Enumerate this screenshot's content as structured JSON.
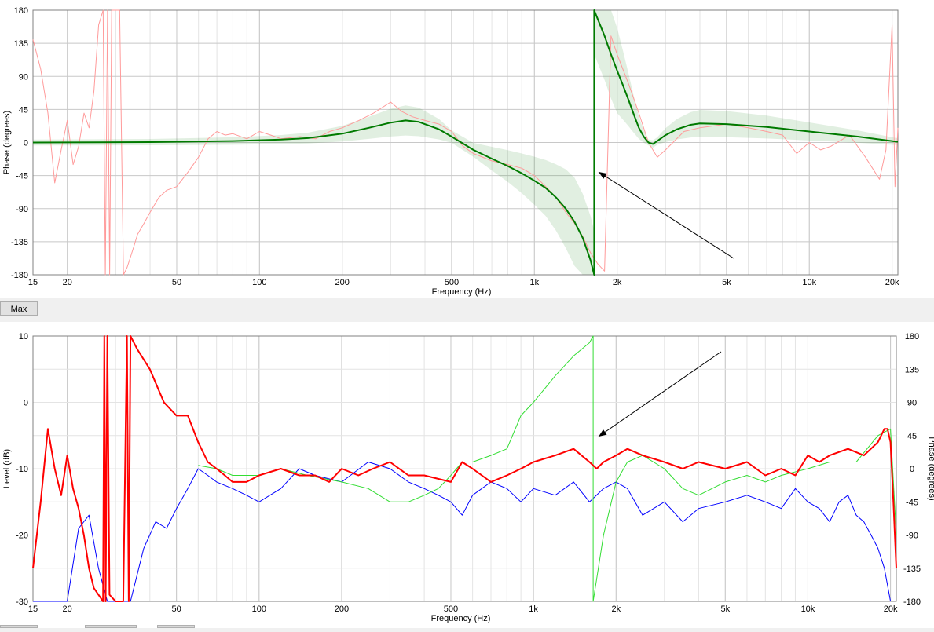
{
  "controls": {
    "max_label": "Max"
  },
  "colors": {
    "red_trace": "#ff0000",
    "light_red_trace": "#ff9a9a",
    "green_trace": "#007a00",
    "green_band": "#2e8b2e",
    "light_green_trace": "#33dd33",
    "blue_trace": "#0000ff",
    "grid_major": "#c8c8c8",
    "grid_minor": "#e4e4e4",
    "arrow": "#000000"
  },
  "chart_data": [
    {
      "type": "line",
      "name": "phase-chart",
      "xlabel": "Frequency (Hz)",
      "ylabel": "Phase (degrees)",
      "xscale": "log",
      "xlim": [
        15,
        21000
      ],
      "ylim": [
        -180,
        180
      ],
      "xticks": [
        "15",
        "20",
        "50",
        "100",
        "200",
        "500",
        "1k",
        "2k",
        "5k",
        "10k",
        "20k"
      ],
      "xtick_values": [
        15,
        20,
        50,
        100,
        200,
        500,
        1000,
        2000,
        5000,
        10000,
        20000
      ],
      "yticks": [
        "180",
        "135",
        "90",
        "45",
        "0",
        "-45",
        "-90",
        "-135",
        "-180"
      ],
      "ytick_values": [
        180,
        135,
        90,
        45,
        0,
        -45,
        -90,
        -135,
        -180
      ],
      "series": [
        {
          "color": "#007a00",
          "width": 2,
          "x": [
            15,
            40,
            80,
            120,
            150,
            200,
            250,
            300,
            340,
            380,
            450,
            500,
            600,
            700,
            800,
            900,
            1000,
            1100,
            1200,
            1300,
            1400,
            1500,
            1600,
            1650,
            1650,
            1700,
            1800,
            1900,
            2000,
            2100,
            2200,
            2300,
            2400,
            2500,
            2600,
            2700,
            2800,
            3000,
            3300,
            3700,
            4000,
            5000,
            7000,
            10000,
            15000,
            21000
          ],
          "y": [
            0,
            0.5,
            2,
            4,
            6,
            12,
            20,
            27,
            30,
            28,
            18,
            8,
            -10,
            -22,
            -32,
            -42,
            -52,
            -62,
            -75,
            -90,
            -108,
            -130,
            -160,
            -180,
            180,
            168,
            145,
            120,
            98,
            78,
            58,
            38,
            20,
            8,
            0,
            -2,
            2,
            10,
            18,
            24,
            26,
            25,
            21,
            15,
            8,
            1
          ]
        },
        {
          "color": "#ff9a9a",
          "width": 1,
          "x": [
            15,
            16,
            17,
            18,
            19,
            20,
            21,
            22,
            23,
            24,
            25,
            26,
            27,
            27.5,
            28,
            28.5,
            29,
            30,
            31,
            32,
            33,
            34,
            35,
            36,
            38,
            40,
            43,
            46,
            50,
            55,
            60,
            65,
            70,
            75,
            80,
            90,
            100,
            110,
            120,
            140,
            160,
            180,
            200,
            230,
            260,
            300,
            330,
            360,
            400,
            450,
            500,
            550,
            600,
            700,
            800,
            900,
            1000,
            1100,
            1200,
            1300,
            1400,
            1500,
            1600,
            1700,
            1800,
            1900,
            2000,
            2200,
            2400,
            2600,
            2800,
            3000,
            3500,
            4000,
            5000,
            6000,
            7000,
            8000,
            9000,
            10000,
            11000,
            12000,
            14000,
            16000,
            18000,
            19000,
            20000,
            20500,
            21000
          ],
          "y": [
            140,
            100,
            40,
            -55,
            -10,
            30,
            -30,
            -5,
            40,
            20,
            70,
            160,
            180,
            -180,
            180,
            -180,
            180,
            180,
            180,
            -180,
            -170,
            -155,
            -140,
            -125,
            -110,
            -95,
            -75,
            -65,
            -60,
            -40,
            -20,
            5,
            15,
            10,
            12,
            5,
            15,
            10,
            5,
            8,
            5,
            15,
            20,
            30,
            40,
            55,
            42,
            35,
            30,
            25,
            15,
            -5,
            -15,
            -25,
            -30,
            -35,
            -45,
            -60,
            -75,
            -95,
            -110,
            -128,
            -150,
            -165,
            -175,
            145,
            120,
            80,
            40,
            0,
            -20,
            -10,
            15,
            20,
            25,
            20,
            15,
            10,
            -15,
            0,
            -10,
            -5,
            10,
            -20,
            -50,
            -10,
            160,
            -60,
            20
          ]
        }
      ]
    },
    {
      "type": "line",
      "name": "level-chart",
      "xlabel": "Frequency (Hz)",
      "ylabel": "Level (dB)",
      "y2label": "Phase (degrees)",
      "xscale": "log",
      "xlim": [
        15,
        21000
      ],
      "ylim": [
        -30,
        10
      ],
      "y2lim": [
        -180,
        180
      ],
      "xticks": [
        "15",
        "20",
        "50",
        "100",
        "200",
        "500",
        "1k",
        "2k",
        "5k",
        "10k",
        "20k"
      ],
      "xtick_values": [
        15,
        20,
        50,
        100,
        200,
        500,
        1000,
        2000,
        5000,
        10000,
        20000
      ],
      "yticks": [
        "10",
        "0",
        "-10",
        "-20",
        "-30"
      ],
      "ytick_values": [
        10,
        0,
        -10,
        -20,
        -30
      ],
      "y2ticks": [
        "180",
        "135",
        "90",
        "45",
        "0",
        "-45",
        "-90",
        "-135",
        "-180"
      ],
      "y2tick_values": [
        180,
        135,
        90,
        45,
        0,
        -45,
        -90,
        -135,
        -180
      ],
      "series": [
        {
          "color": "#ff0000",
          "width": 2,
          "x": [
            15,
            16,
            17,
            18,
            19,
            20,
            21,
            22,
            23,
            24,
            25,
            26,
            27,
            27.3,
            27.6,
            28,
            28.5,
            30,
            32,
            33,
            33.5,
            34,
            36,
            40,
            45,
            50,
            55,
            60,
            65,
            70,
            75,
            80,
            90,
            100,
            120,
            140,
            160,
            180,
            200,
            230,
            260,
            300,
            350,
            400,
            500,
            550,
            600,
            700,
            800,
            900,
            1000,
            1200,
            1400,
            1600,
            1700,
            1800,
            2000,
            2200,
            2500,
            3000,
            3500,
            4000,
            5000,
            6000,
            7000,
            8000,
            9000,
            10000,
            11000,
            12000,
            14000,
            16000,
            18000,
            19000,
            19500,
            20000,
            20500,
            21000
          ],
          "y": [
            -25,
            -15,
            -4,
            -10,
            -14,
            -8,
            -13,
            -16,
            -20,
            -25,
            -28,
            -29,
            -30,
            10,
            -30,
            10,
            -29,
            -30,
            -30,
            10,
            -30,
            10,
            8,
            5,
            0,
            -2,
            -2,
            -6,
            -9,
            -10,
            -11,
            -12,
            -12,
            -11,
            -10,
            -11,
            -11,
            -12,
            -10,
            -11,
            -10,
            -9,
            -11,
            -11,
            -12,
            -9,
            -10,
            -12,
            -11,
            -10,
            -9,
            -8,
            -7,
            -9,
            -10,
            -9,
            -8,
            -7,
            -8,
            -9,
            -10,
            -9,
            -10,
            -9,
            -11,
            -10,
            -11,
            -8,
            -9,
            -8,
            -7,
            -8,
            -6,
            -4,
            -4,
            -6,
            -15,
            -25
          ]
        },
        {
          "color": "#33dd33",
          "width": 1,
          "x": [
            15,
            20,
            27,
            33,
            40,
            50,
            60,
            70,
            80,
            100,
            120,
            150,
            200,
            250,
            300,
            350,
            400,
            450,
            500,
            550,
            600,
            700,
            800,
            900,
            1000,
            1200,
            1400,
            1600,
            1650,
            1650,
            1800,
            2000,
            2200,
            2500,
            3000,
            3500,
            4000,
            5000,
            6000,
            7000,
            8000,
            10000,
            12000,
            15000,
            18000,
            20000,
            21000
          ],
          "y": [
            null,
            null,
            null,
            null,
            null,
            null,
            -9.5,
            -10,
            -11,
            -11,
            -10,
            -11,
            -12,
            -13,
            -15,
            -15,
            -14,
            -13,
            -11,
            -9,
            -9,
            -8,
            -7,
            -2,
            0,
            4,
            7,
            9,
            10,
            -30,
            -20,
            -12,
            -9,
            -8,
            -10,
            -13,
            -14,
            -12,
            -11,
            -12,
            -11,
            -10,
            -9,
            -9,
            -5,
            -4,
            -20
          ]
        },
        {
          "color": "#0000ff",
          "width": 1,
          "x": [
            15,
            20,
            22,
            24,
            26,
            28,
            30,
            32,
            34,
            38,
            42,
            46,
            50,
            55,
            60,
            65,
            70,
            80,
            90,
            100,
            120,
            140,
            160,
            200,
            250,
            300,
            350,
            400,
            450,
            500,
            550,
            600,
            700,
            800,
            900,
            1000,
            1200,
            1400,
            1600,
            1800,
            2000,
            2200,
            2500,
            3000,
            3500,
            4000,
            5000,
            6000,
            7000,
            8000,
            9000,
            10000,
            11000,
            12000,
            13000,
            14000,
            15000,
            16000,
            17000,
            18000,
            19000,
            20000
          ],
          "y": [
            -45,
            -30,
            -19,
            -17,
            -25,
            -33,
            -35,
            -36,
            -30,
            -22,
            -18,
            -19,
            -16,
            -13,
            -10,
            -11,
            -12,
            -13,
            -14,
            -15,
            -13,
            -10,
            -11,
            -12,
            -9,
            -10,
            -12,
            -13,
            -14,
            -15,
            -17,
            -14,
            -12,
            -13,
            -15,
            -13,
            -14,
            -12,
            -15,
            -13,
            -12,
            -13,
            -17,
            -15,
            -18,
            -16,
            -15,
            -14,
            -15,
            -16,
            -13,
            -15,
            -16,
            -18,
            -15,
            -14,
            -17,
            -18,
            -20,
            -22,
            -25,
            -40
          ]
        }
      ]
    }
  ]
}
